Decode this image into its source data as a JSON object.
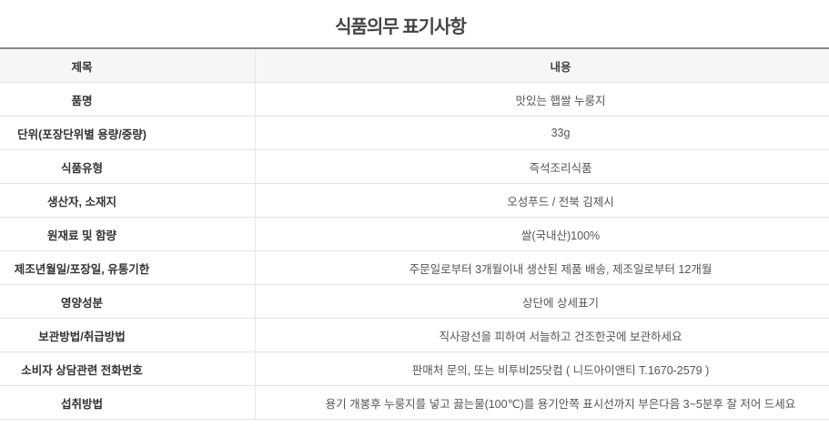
{
  "title": "식품의무 표기사항",
  "headers": {
    "subject": "제목",
    "content": "내용"
  },
  "rows": [
    {
      "label": "품명",
      "value": "맛있는 햅쌀 누룽지"
    },
    {
      "label": "단위(포장단위별 용량/중량)",
      "value": "33g"
    },
    {
      "label": "식품유형",
      "value": "즉석조리식품"
    },
    {
      "label": "생산자, 소재지",
      "value": "오성푸드 / 전북 김제시"
    },
    {
      "label": "원재료 및 함량",
      "value": "쌀(국내산)100%"
    },
    {
      "label": "제조년월일/포장일, 유통기한",
      "value": "주문일로부터 3개월이내 생산된 제품 배송, 제조일로부터 12개월"
    },
    {
      "label": "영양성분",
      "value": "상단에 상세표기"
    },
    {
      "label": "보관방법/취급방법",
      "value": "직사광선을 피하여 서늘하고 건조한곳에 보관하세요"
    },
    {
      "label": "소비자 상담관련 전화번호",
      "value": "판매처 문의, 또는 비투비25닷컴 ( 니드아이앤티 T.1670-2579 )"
    },
    {
      "label": "섭취방법",
      "value": "용기 개봉후 누룽지를 넣고 끓는물(100℃)를 용기안쪽 표시선까지 부은다음 3~5분후 잘 저어 드세요"
    }
  ]
}
